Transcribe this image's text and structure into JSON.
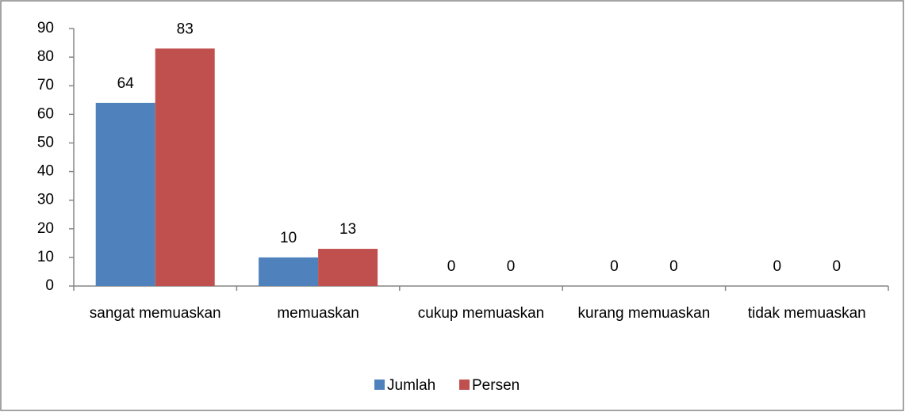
{
  "chart_data": {
    "type": "bar",
    "categories": [
      "sangat memuaskan",
      "memuaskan",
      "cukup memuaskan",
      "kurang memuaskan",
      "tidak memuaskan"
    ],
    "series": [
      {
        "name": "Jumlah",
        "color": "#4f81bd",
        "values": [
          64,
          10,
          0,
          0,
          0
        ]
      },
      {
        "name": "Persen",
        "color": "#c0504d",
        "values": [
          83,
          13,
          0,
          0,
          0
        ]
      }
    ],
    "ylim": [
      0,
      90
    ],
    "yticks": [
      0,
      10,
      20,
      30,
      40,
      50,
      60,
      70,
      80,
      90
    ],
    "grid": false,
    "legend": "bottom"
  }
}
